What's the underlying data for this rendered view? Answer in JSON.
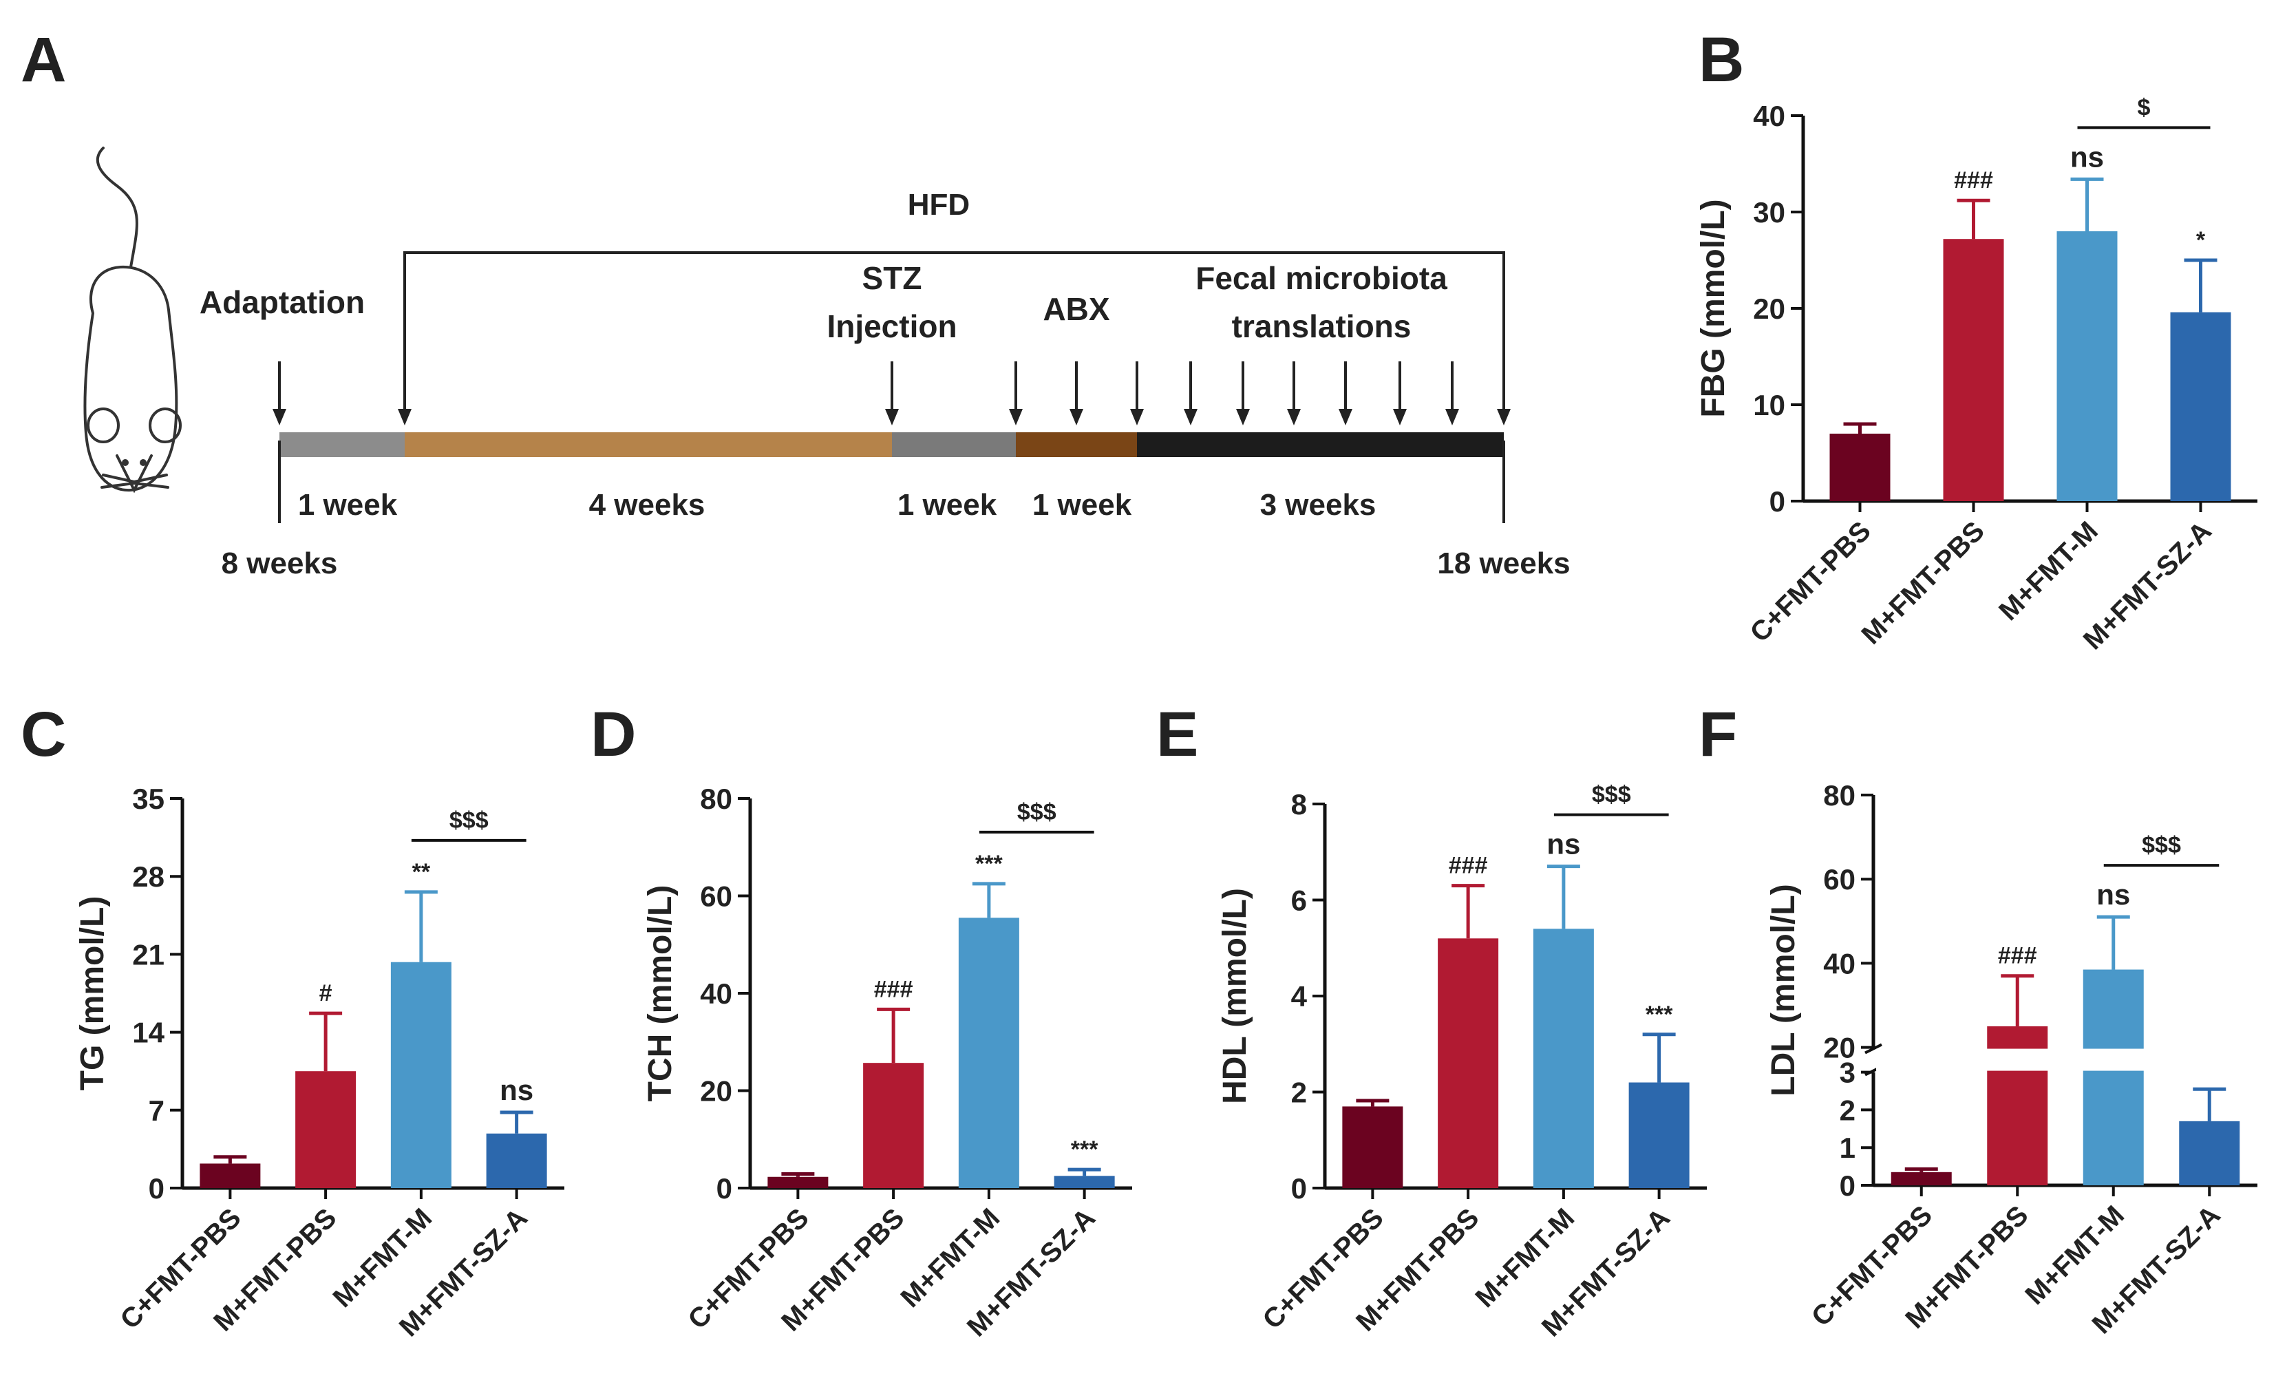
{
  "panel_letters": [
    "A",
    "B",
    "C",
    "D",
    "E",
    "F"
  ],
  "timeline": {
    "hfd_label": "HFD",
    "event_labels": [
      {
        "id": "adaptation",
        "lines": [
          "Adaptation"
        ]
      },
      {
        "id": "stz",
        "lines": [
          "STZ",
          "Injection"
        ]
      },
      {
        "id": "abx",
        "lines": [
          "ABX"
        ]
      },
      {
        "id": "fecal",
        "lines": [
          "Fecal microbiota",
          "translations"
        ]
      }
    ],
    "segments": [
      {
        "label": "1 week",
        "color": "#8c8c8c"
      },
      {
        "label": "4 weeks",
        "color": "#b5834a"
      },
      {
        "label": "1 week",
        "color": "#7a7a7a"
      },
      {
        "label": "1 week",
        "color": "#7a4516"
      },
      {
        "label": "3 weeks",
        "color": "#1c1c1c"
      }
    ],
    "start_label": "8 weeks",
    "end_label": "18 weeks"
  },
  "colors": {
    "groups": [
      "#6b0320",
      "#b11a32",
      "#4a98c9",
      "#2c68ad"
    ],
    "axis": "#111111"
  },
  "chart_data": [
    {
      "panel": "B",
      "type": "bar",
      "categories": [
        "C+FMT-PBS",
        "M+FMT-PBS",
        "M+FMT-M",
        "M+FMT-SZ-A"
      ],
      "values": [
        7.0,
        27.2,
        28.0,
        19.6
      ],
      "errors": [
        1.0,
        4.0,
        5.4,
        5.4
      ],
      "annotations": [
        "",
        "###",
        "ns",
        "*"
      ],
      "ylabel": "FBG (mmol/L)",
      "ylim": [
        0,
        40
      ],
      "yticks": [
        0,
        10,
        20,
        30,
        40
      ],
      "bracket": {
        "label": "$",
        "from": 2,
        "to": 3
      }
    },
    {
      "panel": "C",
      "type": "bar",
      "categories": [
        "C+FMT-PBS",
        "M+FMT-PBS",
        "M+FMT-M",
        "M+FMT-SZ-A"
      ],
      "values": [
        2.2,
        10.5,
        20.3,
        4.9
      ],
      "errors": [
        0.6,
        5.2,
        6.3,
        1.9
      ],
      "annotations": [
        "",
        "#",
        "**",
        "ns"
      ],
      "ylabel": "TG (mmol/L)",
      "ylim": [
        0,
        35
      ],
      "yticks": [
        0,
        7,
        14,
        21,
        28,
        35
      ],
      "bracket": {
        "label": "$$$",
        "from": 2,
        "to": 3
      }
    },
    {
      "panel": "D",
      "type": "bar",
      "categories": [
        "C+FMT-PBS",
        "M+FMT-PBS",
        "M+FMT-M",
        "M+FMT-SZ-A"
      ],
      "values": [
        2.3,
        25.7,
        55.5,
        2.5
      ],
      "errors": [
        0.6,
        11.0,
        7.0,
        1.3
      ],
      "annotations": [
        "",
        "###",
        "***",
        "***"
      ],
      "ylabel": "TCH (mmol/L)",
      "ylim": [
        0,
        80
      ],
      "yticks": [
        0,
        20,
        40,
        60,
        80
      ],
      "bracket": {
        "label": "$$$",
        "from": 2,
        "to": 3
      }
    },
    {
      "panel": "E",
      "type": "bar",
      "categories": [
        "C+FMT-PBS",
        "M+FMT-PBS",
        "M+FMT-M",
        "M+FMT-SZ-A"
      ],
      "values": [
        1.7,
        5.2,
        5.4,
        2.2
      ],
      "errors": [
        0.12,
        1.1,
        1.3,
        1.0
      ],
      "annotations": [
        "",
        "###",
        "ns",
        "***"
      ],
      "ylabel": "HDL (mmol/L)",
      "ylim": [
        0,
        8
      ],
      "yticks": [
        0,
        2,
        4,
        6,
        8
      ],
      "bracket": {
        "label": "$$$",
        "from": 2,
        "to": 3
      }
    },
    {
      "panel": "F",
      "type": "bar",
      "categories": [
        "C+FMT-PBS",
        "M+FMT-PBS",
        "M+FMT-M",
        "M+FMT-SZ-A"
      ],
      "values": [
        0.35,
        25,
        38.5,
        1.7
      ],
      "errors": [
        0.08,
        12,
        12.5,
        0.85
      ],
      "annotations": [
        "",
        "###",
        "ns",
        "***"
      ],
      "ylabel": "LDL (mmol/L)",
      "broken_axis": {
        "lower": [
          0,
          3
        ],
        "upper": [
          20,
          80
        ]
      },
      "yticks": [
        0,
        1,
        2,
        3,
        20,
        40,
        60,
        80
      ],
      "bracket": {
        "label": "$$$",
        "from": 2,
        "to": 3
      }
    }
  ]
}
